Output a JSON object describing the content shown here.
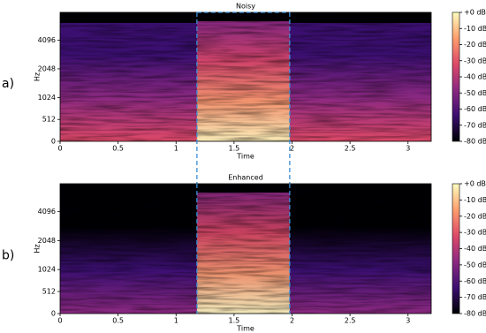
{
  "chart_data": [
    {
      "type": "spectrogram",
      "panel_label": "a)",
      "title": "Noisy",
      "xlabel": "Time",
      "ylabel": "Hz",
      "xlim": [
        0,
        3.2
      ],
      "xticks": [
        0,
        0.5,
        1,
        1.5,
        2,
        2.5,
        3
      ],
      "ylim": [
        0,
        8000
      ],
      "yscale": "mel",
      "yticks": [
        0,
        512,
        1024,
        2048,
        4096
      ],
      "clim": [
        -80,
        0
      ],
      "cticks": [
        {
          "value": 0,
          "label": "+0 dB"
        },
        {
          "value": -10,
          "label": "-10 dB"
        },
        {
          "value": -20,
          "label": "-20 dB"
        },
        {
          "value": -30,
          "label": "-30 dB"
        },
        {
          "value": -40,
          "label": "-40 dB"
        },
        {
          "value": -50,
          "label": "-50 dB"
        },
        {
          "value": -60,
          "label": "-60 dB"
        },
        {
          "value": -70,
          "label": "-70 dB"
        },
        {
          "value": -80,
          "label": "-80 dB"
        }
      ],
      "colormap": [
        "#000004",
        "#3b0f70",
        "#8c2981",
        "#de4968",
        "#fe9f6d",
        "#fcfdbf"
      ],
      "highlight": [
        1.18,
        1.98
      ]
    },
    {
      "type": "spectrogram",
      "panel_label": "b)",
      "title": "Enhanced",
      "xlabel": "Time",
      "ylabel": "Hz",
      "xlim": [
        0,
        3.2
      ],
      "xticks": [
        0,
        0.5,
        1,
        1.5,
        2,
        2.5,
        3
      ],
      "ylim": [
        0,
        8000
      ],
      "yscale": "mel",
      "yticks": [
        0,
        512,
        1024,
        2048,
        4096
      ],
      "clim": [
        -80,
        0
      ],
      "cticks": [
        {
          "value": 0,
          "label": "+0 dB"
        },
        {
          "value": -10,
          "label": "-10 dB"
        },
        {
          "value": -20,
          "label": "-20 dB"
        },
        {
          "value": -30,
          "label": "-30 dB"
        },
        {
          "value": -40,
          "label": "-40 dB"
        },
        {
          "value": -50,
          "label": "-50 dB"
        },
        {
          "value": -60,
          "label": "-60 dB"
        },
        {
          "value": -70,
          "label": "-70 dB"
        },
        {
          "value": -80,
          "label": "-80 dB"
        }
      ],
      "colormap": [
        "#000004",
        "#3b0f70",
        "#8c2981",
        "#de4968",
        "#fe9f6d",
        "#fcfdbf"
      ],
      "highlight": [
        1.18,
        1.98
      ]
    }
  ]
}
